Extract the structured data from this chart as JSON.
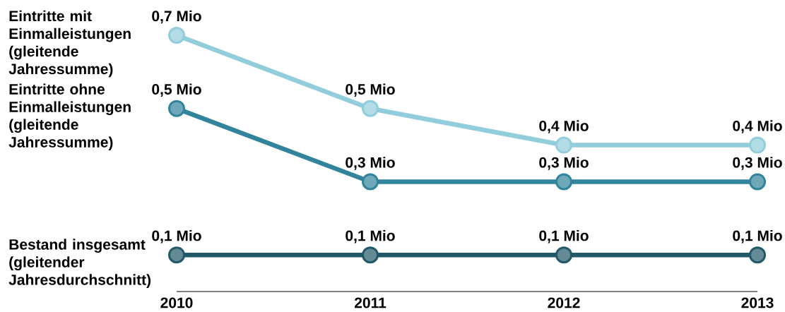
{
  "chart_data": {
    "type": "line",
    "categories": [
      "2010",
      "2011",
      "2012",
      "2013"
    ],
    "marker": "circle",
    "line_style": "solid",
    "series": [
      {
        "name": "Eintritte mit Einmalleistungen (gleitende Jahressumme)",
        "color": "#92cddc",
        "values": [
          0.7,
          0.5,
          0.4,
          0.4
        ],
        "value_labels": [
          "0,7 Mio",
          "0,5 Mio",
          "0,4 Mio",
          "0,4 Mio"
        ]
      },
      {
        "name": "Eintritte ohne Einmalleistungen (gleitende Jahressumme)",
        "color": "#31849b",
        "values": [
          0.5,
          0.3,
          0.3,
          0.3
        ],
        "value_labels": [
          "0,5 Mio",
          "0,3 Mio",
          "0,3 Mio",
          "0,3 Mio"
        ]
      },
      {
        "name": "Bestand insgesamt (gleitender Jahresdurchschnitt)",
        "color": "#215968",
        "values": [
          0.1,
          0.1,
          0.1,
          0.1
        ],
        "value_labels": [
          "0,1 Mio",
          "0,1 Mio",
          "0,1 Mio",
          "0,1 Mio"
        ]
      }
    ]
  }
}
